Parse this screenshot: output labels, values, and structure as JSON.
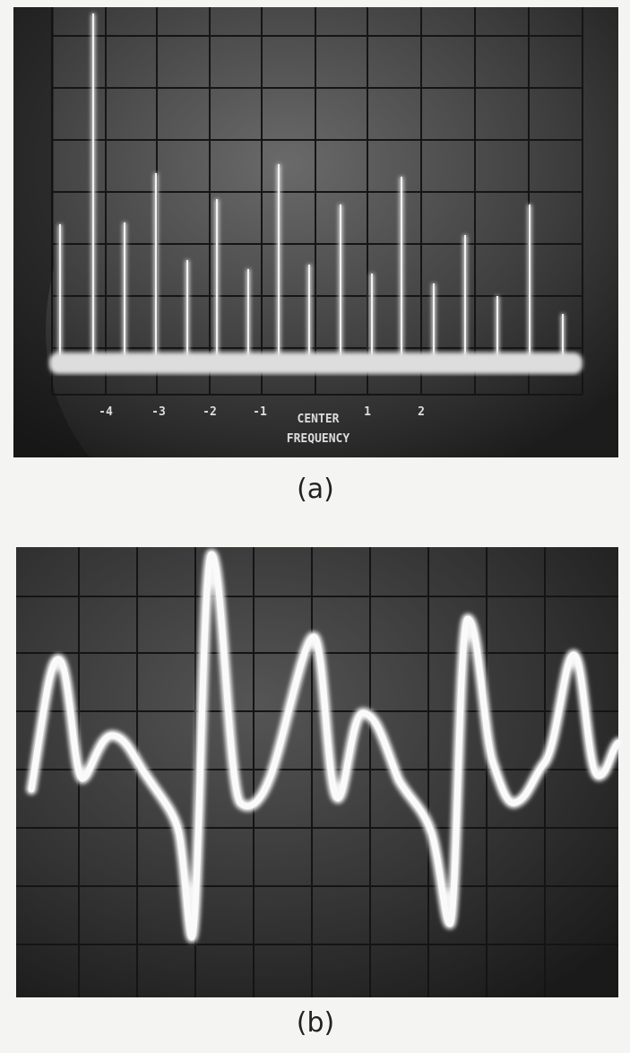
{
  "panel_a": {
    "axis_labels": [
      "-4",
      "-3",
      "-2",
      "-1",
      "1",
      "2"
    ],
    "center_label": [
      "CENTER",
      "FREQUENCY"
    ],
    "caption": "(a)"
  },
  "panel_b": {
    "caption": "(b)"
  }
}
